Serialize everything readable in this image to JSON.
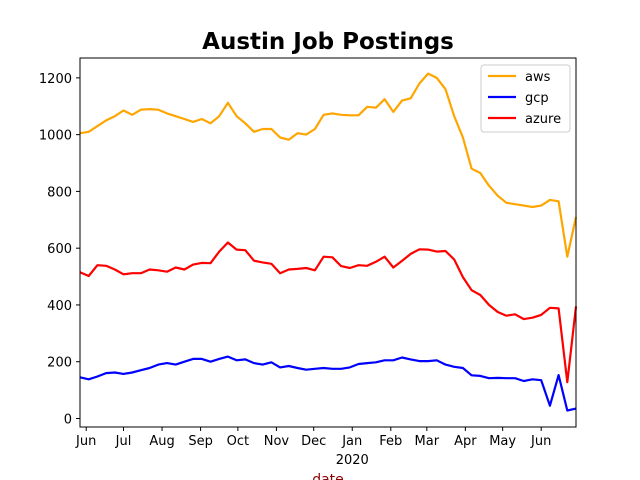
{
  "chart_data": {
    "type": "line",
    "title": "Austin Job Postings",
    "xlabel": "date",
    "ylabel": "",
    "xlabel_color": "#8b0000",
    "ylim": [
      -30,
      1270
    ],
    "yticks": [
      0,
      200,
      400,
      600,
      800,
      1000,
      1200
    ],
    "x": [
      "2019-05-27",
      "2019-06-03",
      "2019-06-10",
      "2019-06-17",
      "2019-06-24",
      "2019-07-01",
      "2019-07-08",
      "2019-07-15",
      "2019-07-22",
      "2019-07-29",
      "2019-08-05",
      "2019-08-12",
      "2019-08-19",
      "2019-08-26",
      "2019-09-02",
      "2019-09-09",
      "2019-09-16",
      "2019-09-23",
      "2019-09-30",
      "2019-10-07",
      "2019-10-14",
      "2019-10-21",
      "2019-10-28",
      "2019-11-04",
      "2019-11-11",
      "2019-11-18",
      "2019-11-25",
      "2019-12-02",
      "2019-12-09",
      "2019-12-16",
      "2019-12-23",
      "2019-12-30",
      "2020-01-06",
      "2020-01-13",
      "2020-01-20",
      "2020-01-27",
      "2020-02-03",
      "2020-02-10",
      "2020-02-17",
      "2020-02-24",
      "2020-03-02",
      "2020-03-09",
      "2020-03-16",
      "2020-03-23",
      "2020-03-30",
      "2020-04-06",
      "2020-04-13",
      "2020-04-20",
      "2020-04-27",
      "2020-05-04",
      "2020-05-11",
      "2020-05-18",
      "2020-05-25",
      "2020-06-01",
      "2020-06-08",
      "2020-06-15",
      "2020-06-22",
      "2020-06-29"
    ],
    "series": [
      {
        "name": "aws",
        "color": "#ffa500",
        "values": [
          1005,
          1010,
          1030,
          1050,
          1065,
          1085,
          1070,
          1088,
          1090,
          1088,
          1075,
          1065,
          1055,
          1045,
          1055,
          1040,
          1065,
          1112,
          1065,
          1040,
          1010,
          1020,
          1020,
          990,
          982,
          1005,
          1000,
          1020,
          1070,
          1075,
          1070,
          1068,
          1068,
          1098,
          1095,
          1125,
          1080,
          1120,
          1128,
          1180,
          1215,
          1200,
          1160,
          1065,
          990,
          880,
          865,
          820,
          785,
          760,
          755,
          750,
          745,
          750,
          770,
          765,
          570,
          710
        ]
      },
      {
        "name": "gcp",
        "color": "#0000ff",
        "values": [
          145,
          138,
          148,
          160,
          162,
          157,
          162,
          170,
          178,
          190,
          195,
          190,
          200,
          210,
          210,
          200,
          210,
          218,
          205,
          208,
          195,
          190,
          198,
          180,
          185,
          178,
          172,
          175,
          178,
          175,
          175,
          180,
          192,
          195,
          198,
          205,
          205,
          215,
          208,
          202,
          202,
          205,
          190,
          182,
          178,
          152,
          150,
          142,
          143,
          142,
          142,
          132,
          138,
          135,
          45,
          153,
          28,
          35
        ]
      },
      {
        "name": "azure",
        "color": "#ff0000",
        "values": [
          515,
          502,
          540,
          538,
          525,
          508,
          512,
          512,
          525,
          522,
          517,
          532,
          525,
          542,
          548,
          547,
          588,
          620,
          595,
          593,
          556,
          550,
          545,
          512,
          525,
          527,
          530,
          522,
          570,
          568,
          537,
          530,
          540,
          538,
          552,
          570,
          532,
          555,
          580,
          596,
          595,
          588,
          590,
          560,
          498,
          452,
          435,
          400,
          375,
          362,
          367,
          350,
          355,
          365,
          390,
          388,
          128,
          395
        ]
      }
    ],
    "xticks": [
      {
        "date": "2019-06-01",
        "label": "Jun",
        "major": false
      },
      {
        "date": "2019-07-01",
        "label": "Jul",
        "major": false
      },
      {
        "date": "2019-08-01",
        "label": "Aug",
        "major": false
      },
      {
        "date": "2019-09-01",
        "label": "Sep",
        "major": false
      },
      {
        "date": "2019-10-01",
        "label": "Oct",
        "major": false
      },
      {
        "date": "2019-11-01",
        "label": "Nov",
        "major": false
      },
      {
        "date": "2019-12-01",
        "label": "Dec",
        "major": false
      },
      {
        "date": "2020-01-01",
        "label": "Jan",
        "major": true,
        "sublabel": "2020"
      },
      {
        "date": "2020-02-01",
        "label": "Feb",
        "major": false
      },
      {
        "date": "2020-03-01",
        "label": "Mar",
        "major": false
      },
      {
        "date": "2020-04-01",
        "label": "Apr",
        "major": false
      },
      {
        "date": "2020-05-01",
        "label": "May",
        "major": false
      },
      {
        "date": "2020-06-01",
        "label": "Jun",
        "major": false
      }
    ],
    "xlim": [
      "2019-05-27",
      "2020-06-29"
    ],
    "grid": false,
    "legend_position": "top-right"
  }
}
